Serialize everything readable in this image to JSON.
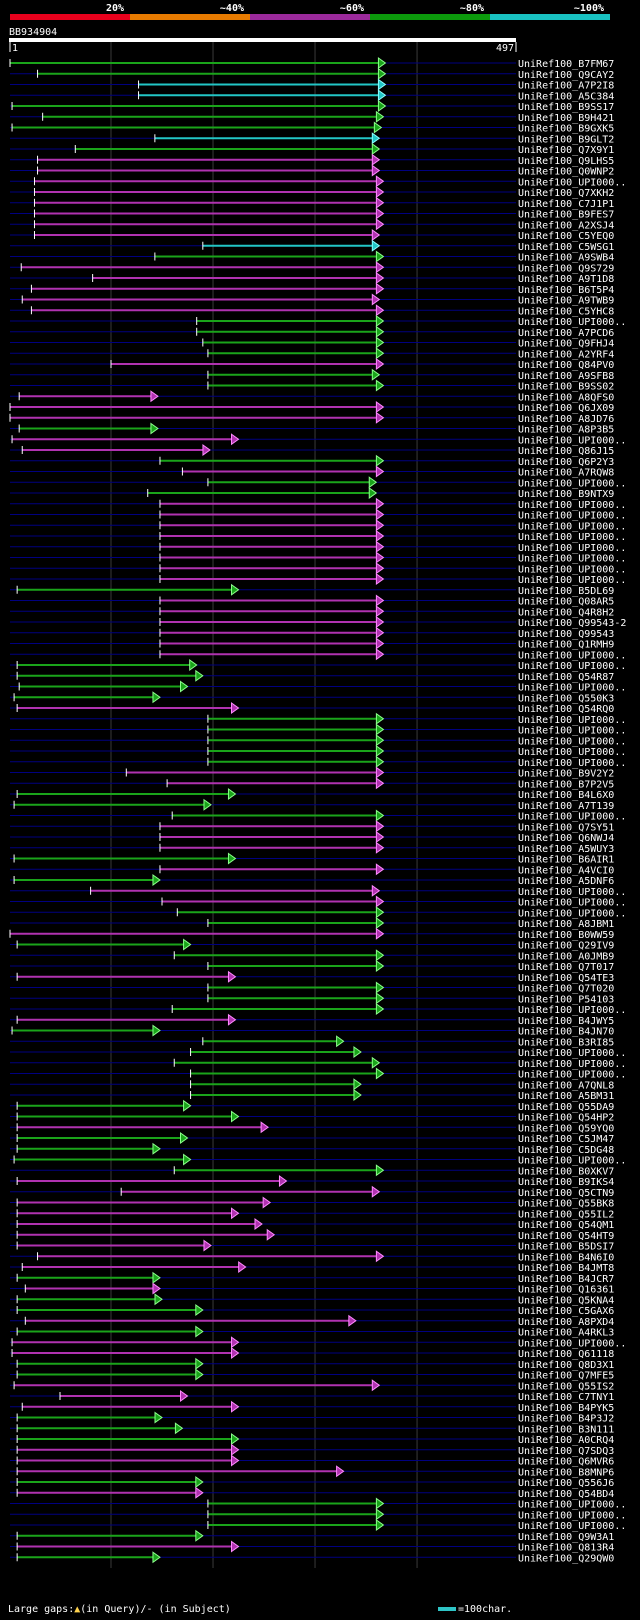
{
  "header": {
    "identity_bands": [
      {
        "label": "20%",
        "color": "#e8001c"
      },
      {
        "label": "~40%",
        "color": "#e87b00"
      },
      {
        "label": "~60%",
        "color": "#9c2a9c"
      },
      {
        "label": "~80%",
        "color": "#0c9a0c"
      },
      {
        "label": "~100%",
        "color": "#19c2c2"
      }
    ],
    "query_name": "BB934904",
    "query_start": "1",
    "query_end": "497"
  },
  "footer": {
    "gaps_prefix": "Large gaps:",
    "gaps_query": "(in Query)/",
    "gaps_subject": "- (in Subject)",
    "scale_label": "=100char."
  },
  "chart_data": {
    "type": "alignment-overview",
    "query_length": 497,
    "hits": [
      {
        "id": "UniRef100_B7FM67",
        "start": 1,
        "end": 369,
        "color": "green"
      },
      {
        "id": "UniRef100_Q9CAY2",
        "start": 28,
        "end": 369,
        "color": "green"
      },
      {
        "id": "UniRef100_A7P2I8",
        "start": 127,
        "end": 369,
        "color": "cyan"
      },
      {
        "id": "UniRef100_A5C384",
        "start": 127,
        "end": 369,
        "color": "cyan"
      },
      {
        "id": "UniRef100_B9SS17",
        "start": 3,
        "end": 369,
        "color": "green"
      },
      {
        "id": "UniRef100_B9H421",
        "start": 33,
        "end": 367,
        "color": "green"
      },
      {
        "id": "UniRef100_B9GXK5",
        "start": 3,
        "end": 365,
        "color": "green"
      },
      {
        "id": "UniRef100_B9GLT2",
        "start": 143,
        "end": 363,
        "color": "cyan"
      },
      {
        "id": "UniRef100_Q7X9Y1",
        "start": 65,
        "end": 363,
        "color": "green"
      },
      {
        "id": "UniRef100_Q9LHS5",
        "start": 28,
        "end": 363,
        "color": "magenta"
      },
      {
        "id": "UniRef100_Q0WNP2",
        "start": 28,
        "end": 363,
        "color": "magenta"
      },
      {
        "id": "UniRef100_UPI000..",
        "start": 25,
        "end": 367,
        "color": "magenta"
      },
      {
        "id": "UniRef100_Q7XKH2",
        "start": 25,
        "end": 367,
        "color": "magenta"
      },
      {
        "id": "UniRef100_C7J1P1",
        "start": 25,
        "end": 367,
        "color": "magenta"
      },
      {
        "id": "UniRef100_B9FES7",
        "start": 25,
        "end": 367,
        "color": "magenta"
      },
      {
        "id": "UniRef100_A2XSJ4",
        "start": 25,
        "end": 367,
        "color": "magenta"
      },
      {
        "id": "UniRef100_C5YEQ0",
        "start": 25,
        "end": 363,
        "color": "magenta"
      },
      {
        "id": "UniRef100_C5WSG1",
        "start": 190,
        "end": 363,
        "color": "cyan"
      },
      {
        "id": "UniRef100_A9SWB4",
        "start": 143,
        "end": 367,
        "color": "green"
      },
      {
        "id": "UniRef100_Q9S729",
        "start": 12,
        "end": 367,
        "color": "magenta"
      },
      {
        "id": "UniRef100_A9T1D8",
        "start": 82,
        "end": 367,
        "color": "magenta"
      },
      {
        "id": "UniRef100_B6T5P4",
        "start": 22,
        "end": 367,
        "color": "magenta"
      },
      {
        "id": "UniRef100_A9TWB9",
        "start": 13,
        "end": 363,
        "color": "magenta"
      },
      {
        "id": "UniRef100_C5YHC8",
        "start": 22,
        "end": 367,
        "color": "magenta"
      },
      {
        "id": "UniRef100_UPI000..",
        "start": 184,
        "end": 367,
        "color": "green"
      },
      {
        "id": "UniRef100_A7PCD6",
        "start": 184,
        "end": 367,
        "color": "green"
      },
      {
        "id": "UniRef100_Q9FHJ4",
        "start": 190,
        "end": 367,
        "color": "green"
      },
      {
        "id": "UniRef100_A2YRF4",
        "start": 195,
        "end": 367,
        "color": "green"
      },
      {
        "id": "UniRef100_Q84PV0",
        "start": 100,
        "end": 367,
        "color": "magenta"
      },
      {
        "id": "UniRef100_A9SFB8",
        "start": 195,
        "end": 363,
        "color": "green"
      },
      {
        "id": "UniRef100_B9SS02",
        "start": 195,
        "end": 367,
        "color": "green"
      },
      {
        "id": "UniRef100_A8QFS0",
        "start": 10,
        "end": 146,
        "color": "magenta"
      },
      {
        "id": "UniRef100_Q6JX09",
        "start": 1,
        "end": 367,
        "color": "magenta"
      },
      {
        "id": "UniRef100_A8JD76",
        "start": 1,
        "end": 367,
        "color": "magenta"
      },
      {
        "id": "UniRef100_A8P3B5",
        "start": 10,
        "end": 146,
        "color": "green"
      },
      {
        "id": "UniRef100_UPI000..",
        "start": 3,
        "end": 225,
        "color": "magenta"
      },
      {
        "id": "UniRef100_Q86J15",
        "start": 13,
        "end": 197,
        "color": "magenta"
      },
      {
        "id": "UniRef100_Q6P2Y3",
        "start": 148,
        "end": 367,
        "color": "green"
      },
      {
        "id": "UniRef100_A7RQW8",
        "start": 170,
        "end": 367,
        "color": "magenta"
      },
      {
        "id": "UniRef100_UPI000..",
        "start": 195,
        "end": 360,
        "color": "green"
      },
      {
        "id": "UniRef100_B9NTX9",
        "start": 136,
        "end": 360,
        "color": "green"
      },
      {
        "id": "UniRef100_UPI000..",
        "start": 148,
        "end": 367,
        "color": "magenta"
      },
      {
        "id": "UniRef100_UPI000..",
        "start": 148,
        "end": 367,
        "color": "magenta"
      },
      {
        "id": "UniRef100_UPI000..",
        "start": 148,
        "end": 367,
        "color": "magenta"
      },
      {
        "id": "UniRef100_UPI000..",
        "start": 148,
        "end": 367,
        "color": "magenta"
      },
      {
        "id": "UniRef100_UPI000..",
        "start": 148,
        "end": 367,
        "color": "magenta"
      },
      {
        "id": "UniRef100_UPI000..",
        "start": 148,
        "end": 367,
        "color": "magenta"
      },
      {
        "id": "UniRef100_UPI000..",
        "start": 148,
        "end": 367,
        "color": "magenta"
      },
      {
        "id": "UniRef100_UPI000..",
        "start": 148,
        "end": 367,
        "color": "magenta"
      },
      {
        "id": "UniRef100_B5DL69",
        "start": 8,
        "end": 225,
        "color": "green"
      },
      {
        "id": "UniRef100_Q08AR5",
        "start": 148,
        "end": 367,
        "color": "magenta"
      },
      {
        "id": "UniRef100_Q4R8H2",
        "start": 148,
        "end": 367,
        "color": "magenta"
      },
      {
        "id": "UniRef100_Q99543-2",
        "start": 148,
        "end": 367,
        "color": "magenta"
      },
      {
        "id": "UniRef100_Q99543",
        "start": 148,
        "end": 367,
        "color": "magenta"
      },
      {
        "id": "UniRef100_Q1RMH9",
        "start": 148,
        "end": 367,
        "color": "magenta"
      },
      {
        "id": "UniRef100_UPI000..",
        "start": 148,
        "end": 367,
        "color": "magenta"
      },
      {
        "id": "UniRef100_UPI000..",
        "start": 8,
        "end": 184,
        "color": "green"
      },
      {
        "id": "UniRef100_Q54R87",
        "start": 8,
        "end": 190,
        "color": "green"
      },
      {
        "id": "UniRef100_UPI000..",
        "start": 10,
        "end": 175,
        "color": "green"
      },
      {
        "id": "UniRef100_Q550K3",
        "start": 5,
        "end": 148,
        "color": "green"
      },
      {
        "id": "UniRef100_Q54RQ0",
        "start": 8,
        "end": 225,
        "color": "magenta"
      },
      {
        "id": "UniRef100_UPI000..",
        "start": 195,
        "end": 367,
        "color": "green"
      },
      {
        "id": "UniRef100_UPI000..",
        "start": 195,
        "end": 367,
        "color": "green"
      },
      {
        "id": "UniRef100_UPI000..",
        "start": 195,
        "end": 367,
        "color": "green"
      },
      {
        "id": "UniRef100_UPI000..",
        "start": 195,
        "end": 367,
        "color": "green"
      },
      {
        "id": "UniRef100_UPI000..",
        "start": 195,
        "end": 367,
        "color": "green"
      },
      {
        "id": "UniRef100_B9V2Y2",
        "start": 115,
        "end": 367,
        "color": "magenta"
      },
      {
        "id": "UniRef100_B7P2V5",
        "start": 155,
        "end": 367,
        "color": "magenta"
      },
      {
        "id": "UniRef100_B4L6X0",
        "start": 8,
        "end": 222,
        "color": "green"
      },
      {
        "id": "UniRef100_A7T139",
        "start": 5,
        "end": 198,
        "color": "green"
      },
      {
        "id": "UniRef100_UPI000..",
        "start": 160,
        "end": 367,
        "color": "green"
      },
      {
        "id": "UniRef100_Q7SY51",
        "start": 148,
        "end": 367,
        "color": "magenta"
      },
      {
        "id": "UniRef100_Q6NWJ4",
        "start": 148,
        "end": 367,
        "color": "magenta"
      },
      {
        "id": "UniRef100_A5WUY3",
        "start": 148,
        "end": 367,
        "color": "magenta"
      },
      {
        "id": "UniRef100_B6AIR1",
        "start": 5,
        "end": 222,
        "color": "green"
      },
      {
        "id": "UniRef100_A4VCI0",
        "start": 148,
        "end": 367,
        "color": "magenta"
      },
      {
        "id": "UniRef100_A5DNF6",
        "start": 5,
        "end": 148,
        "color": "green"
      },
      {
        "id": "UniRef100_UPI000..",
        "start": 80,
        "end": 363,
        "color": "magenta"
      },
      {
        "id": "UniRef100_UPI000..",
        "start": 150,
        "end": 367,
        "color": "magenta"
      },
      {
        "id": "UniRef100_UPI000..",
        "start": 165,
        "end": 367,
        "color": "green"
      },
      {
        "id": "UniRef100_A8JBM1",
        "start": 195,
        "end": 367,
        "color": "green"
      },
      {
        "id": "UniRef100_B0WW59",
        "start": 1,
        "end": 367,
        "color": "magenta"
      },
      {
        "id": "UniRef100_Q29IV9",
        "start": 8,
        "end": 178,
        "color": "green"
      },
      {
        "id": "UniRef100_A0JMB9",
        "start": 162,
        "end": 367,
        "color": "green"
      },
      {
        "id": "UniRef100_Q7T017",
        "start": 195,
        "end": 367,
        "color": "green"
      },
      {
        "id": "UniRef100_Q54TE3",
        "start": 8,
        "end": 222,
        "color": "magenta"
      },
      {
        "id": "UniRef100_Q7T020",
        "start": 195,
        "end": 367,
        "color": "green"
      },
      {
        "id": "UniRef100_P54103",
        "start": 195,
        "end": 367,
        "color": "green"
      },
      {
        "id": "UniRef100_UPI000..",
        "start": 160,
        "end": 367,
        "color": "green"
      },
      {
        "id": "UniRef100_B4JWY5",
        "start": 8,
        "end": 222,
        "color": "magenta"
      },
      {
        "id": "UniRef100_B4JN70",
        "start": 3,
        "end": 148,
        "color": "green"
      },
      {
        "id": "UniRef100_B3RI85",
        "start": 190,
        "end": 328,
        "color": "green"
      },
      {
        "id": "UniRef100_UPI000..",
        "start": 178,
        "end": 345,
        "color": "green"
      },
      {
        "id": "UniRef100_UPI000..",
        "start": 162,
        "end": 363,
        "color": "green"
      },
      {
        "id": "UniRef100_UPI000..",
        "start": 178,
        "end": 367,
        "color": "green"
      },
      {
        "id": "UniRef100_A7QNL8",
        "start": 178,
        "end": 345,
        "color": "green"
      },
      {
        "id": "UniRef100_A5BM31",
        "start": 178,
        "end": 345,
        "color": "green"
      },
      {
        "id": "UniRef100_Q55DA9",
        "start": 8,
        "end": 178,
        "color": "green"
      },
      {
        "id": "UniRef100_Q54HP2",
        "start": 8,
        "end": 225,
        "color": "green"
      },
      {
        "id": "UniRef100_Q59YQ0",
        "start": 8,
        "end": 254,
        "color": "magenta"
      },
      {
        "id": "UniRef100_C5JM47",
        "start": 8,
        "end": 175,
        "color": "green"
      },
      {
        "id": "UniRef100_C5DG48",
        "start": 8,
        "end": 148,
        "color": "green"
      },
      {
        "id": "UniRef100_UPI000..",
        "start": 5,
        "end": 178,
        "color": "green"
      },
      {
        "id": "UniRef100_B0XKV7",
        "start": 162,
        "end": 367,
        "color": "green"
      },
      {
        "id": "UniRef100_B9IKS4",
        "start": 8,
        "end": 272,
        "color": "magenta"
      },
      {
        "id": "UniRef100_Q5CTN9",
        "start": 110,
        "end": 363,
        "color": "magenta"
      },
      {
        "id": "UniRef100_Q55BK8",
        "start": 8,
        "end": 256,
        "color": "magenta"
      },
      {
        "id": "UniRef100_Q55IL2",
        "start": 8,
        "end": 225,
        "color": "magenta"
      },
      {
        "id": "UniRef100_Q54QM1",
        "start": 8,
        "end": 248,
        "color": "magenta"
      },
      {
        "id": "UniRef100_Q54HT9",
        "start": 8,
        "end": 260,
        "color": "magenta"
      },
      {
        "id": "UniRef100_B5DSI7",
        "start": 8,
        "end": 198,
        "color": "magenta"
      },
      {
        "id": "UniRef100_B4N6I0",
        "start": 28,
        "end": 367,
        "color": "magenta"
      },
      {
        "id": "UniRef100_B4JMT8",
        "start": 13,
        "end": 232,
        "color": "magenta"
      },
      {
        "id": "UniRef100_B4JCR7",
        "start": 8,
        "end": 148,
        "color": "green"
      },
      {
        "id": "UniRef100_Q16361",
        "start": 16,
        "end": 148,
        "color": "magenta"
      },
      {
        "id": "UniRef100_Q5KNA4",
        "start": 8,
        "end": 150,
        "color": "green"
      },
      {
        "id": "UniRef100_C5GAX6",
        "start": 8,
        "end": 190,
        "color": "green"
      },
      {
        "id": "UniRef100_A8PXD4",
        "start": 16,
        "end": 340,
        "color": "magenta"
      },
      {
        "id": "UniRef100_A4RKL3",
        "start": 8,
        "end": 190,
        "color": "green"
      },
      {
        "id": "UniRef100_UPI000..",
        "start": 3,
        "end": 225,
        "color": "magenta"
      },
      {
        "id": "UniRef100_Q61118",
        "start": 3,
        "end": 225,
        "color": "magenta"
      },
      {
        "id": "UniRef100_Q8D3X1",
        "start": 8,
        "end": 190,
        "color": "green"
      },
      {
        "id": "UniRef100_Q7MFE5",
        "start": 8,
        "end": 190,
        "color": "green"
      },
      {
        "id": "UniRef100_Q55IS2",
        "start": 5,
        "end": 363,
        "color": "magenta"
      },
      {
        "id": "UniRef100_C7TNY1",
        "start": 50,
        "end": 175,
        "color": "magenta"
      },
      {
        "id": "UniRef100_B4PYK5",
        "start": 13,
        "end": 225,
        "color": "magenta"
      },
      {
        "id": "UniRef100_B4P3J2",
        "start": 8,
        "end": 150,
        "color": "green"
      },
      {
        "id": "UniRef100_B3N111",
        "start": 8,
        "end": 170,
        "color": "green"
      },
      {
        "id": "UniRef100_A0CRQ4",
        "start": 8,
        "end": 225,
        "color": "green"
      },
      {
        "id": "UniRef100_Q7SDQ3",
        "start": 8,
        "end": 225,
        "color": "magenta"
      },
      {
        "id": "UniRef100_Q6MVR6",
        "start": 8,
        "end": 225,
        "color": "magenta"
      },
      {
        "id": "UniRef100_B8MNP6",
        "start": 8,
        "end": 328,
        "color": "magenta"
      },
      {
        "id": "UniRef100_Q556J6",
        "start": 8,
        "end": 190,
        "color": "green"
      },
      {
        "id": "UniRef100_Q54BD4",
        "start": 8,
        "end": 190,
        "color": "magenta"
      },
      {
        "id": "UniRef100_UPI000..",
        "start": 195,
        "end": 367,
        "color": "green"
      },
      {
        "id": "UniRef100_UPI000..",
        "start": 195,
        "end": 367,
        "color": "green"
      },
      {
        "id": "UniRef100_UPI000..",
        "start": 195,
        "end": 367,
        "color": "green"
      },
      {
        "id": "UniRef100_Q9W3A1",
        "start": 8,
        "end": 190,
        "color": "green"
      },
      {
        "id": "UniRef100_Q813R4",
        "start": 8,
        "end": 225,
        "color": "magenta"
      },
      {
        "id": "UniRef100_Q29QW0",
        "start": 8,
        "end": 148,
        "color": "green"
      }
    ],
    "gridlines": [
      100,
      200,
      300,
      400
    ],
    "series_colors": {
      "green": "#1aa41a",
      "magenta": "#b032b0",
      "cyan": "#22c6c6",
      "arrow_green": "#8cff8c",
      "arrow_magenta": "#ff8cff",
      "arrow_cyan": "#8cffff",
      "gap_marker": "#ffd24d"
    }
  }
}
